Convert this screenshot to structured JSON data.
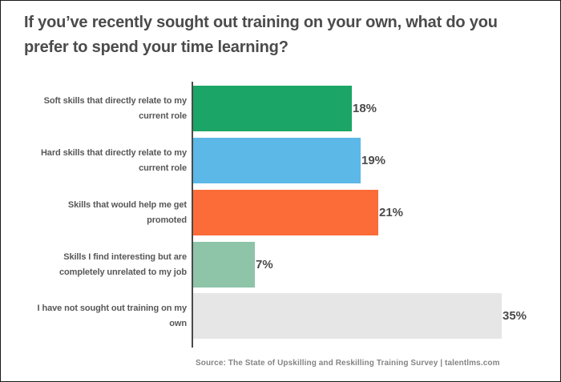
{
  "chart_data": {
    "type": "bar",
    "orientation": "horizontal",
    "title": "If you’ve recently sought out training on your own, what do you prefer to spend your time learning?",
    "categories": [
      "Soft skills that directly relate to my current role",
      "Hard skills that directly relate to my current role",
      "Skills that would help me get promoted",
      "Skills I find interesting but are completely unrelated to my job",
      "I have not sought out training on my own"
    ],
    "category_lines": [
      "Soft skills that directly relate to my\ncurrent role",
      "Hard skills that directly relate to my\ncurrent role",
      "Skills that would help me get\npromoted",
      "Skills I find interesting but are\ncompletely unrelated to my job",
      "I have not sought out training on my\nown"
    ],
    "values": [
      18,
      19,
      21,
      7,
      35
    ],
    "value_labels": [
      "18%",
      "19%",
      "21%",
      "7%",
      "35%"
    ],
    "colors": [
      "#1ba566",
      "#5cb8e6",
      "#fc6c38",
      "#8ec4a8",
      "#e6e6e6"
    ],
    "xlim": [
      0,
      38
    ],
    "axis_color": "#4a4a4a",
    "grid": false,
    "legend": false,
    "source": "Source: The State of Upskilling and Reskilling Training Survey  |  talentlms.com"
  }
}
